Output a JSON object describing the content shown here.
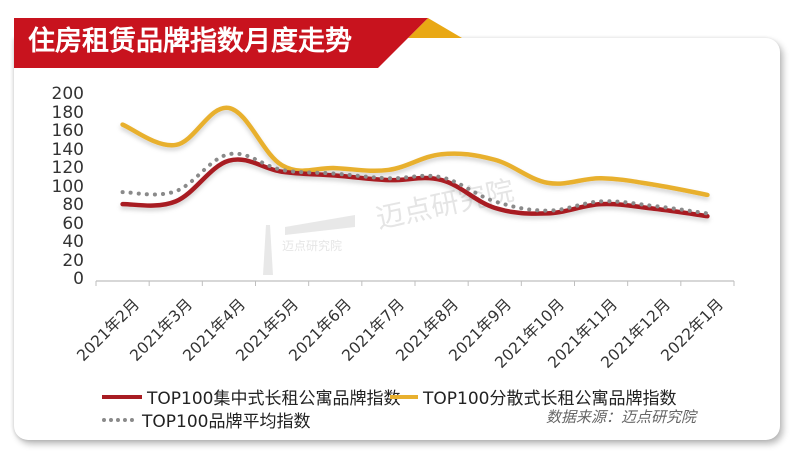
{
  "header": {
    "title": "住房租赁品牌指数月度走势"
  },
  "colors": {
    "banner_red": "#c8131e",
    "banner_gold": "#e9a814",
    "series_red": "#a81c22",
    "series_gold": "#e8b02e",
    "series_gray": "#8a8a8a"
  },
  "watermark": {
    "text": "迈点研究院",
    "logo_text": "迈点研究院"
  },
  "source": "数据来源：迈点研究院",
  "chart_data": {
    "type": "line",
    "title": "住房租赁品牌指数月度走势",
    "xlabel": "",
    "ylabel": "",
    "ylim": [
      0,
      200
    ],
    "yticks": [
      "0",
      "20",
      "40",
      "60",
      "80",
      "100",
      "120",
      "140",
      "160",
      "180",
      "200"
    ],
    "grid": false,
    "legend_position": "bottom",
    "categories": [
      "2021年2月",
      "2021年3月",
      "2021年4月",
      "2021年5月",
      "2021年6月",
      "2021年7月",
      "2021年8月",
      "2021年9月",
      "2021年10月",
      "2021年11月",
      "2021年12月",
      "2022年1月"
    ],
    "series": [
      {
        "name": "TOP100集中式长租公寓品牌指数",
        "style": "solid",
        "color": "#a81c22",
        "values": [
          82,
          85,
          129,
          117,
          113,
          108,
          108,
          78,
          72,
          82,
          77,
          69
        ]
      },
      {
        "name": "TOP100分散式长租公寓品牌指数",
        "style": "solid",
        "color": "#e8b02e",
        "values": [
          168,
          146,
          186,
          124,
          121,
          119,
          136,
          130,
          105,
          110,
          103,
          92
        ]
      },
      {
        "name": "TOP100品牌平均指数",
        "style": "dotted",
        "color": "#8a8a8a",
        "values": [
          95,
          96,
          136,
          119,
          115,
          110,
          111,
          85,
          75,
          85,
          80,
          72
        ]
      }
    ]
  },
  "legend": [
    {
      "label": "TOP100集中式长租公寓品牌指数"
    },
    {
      "label": "TOP100分散式长租公寓品牌指数"
    },
    {
      "label": "TOP100品牌平均指数"
    }
  ]
}
